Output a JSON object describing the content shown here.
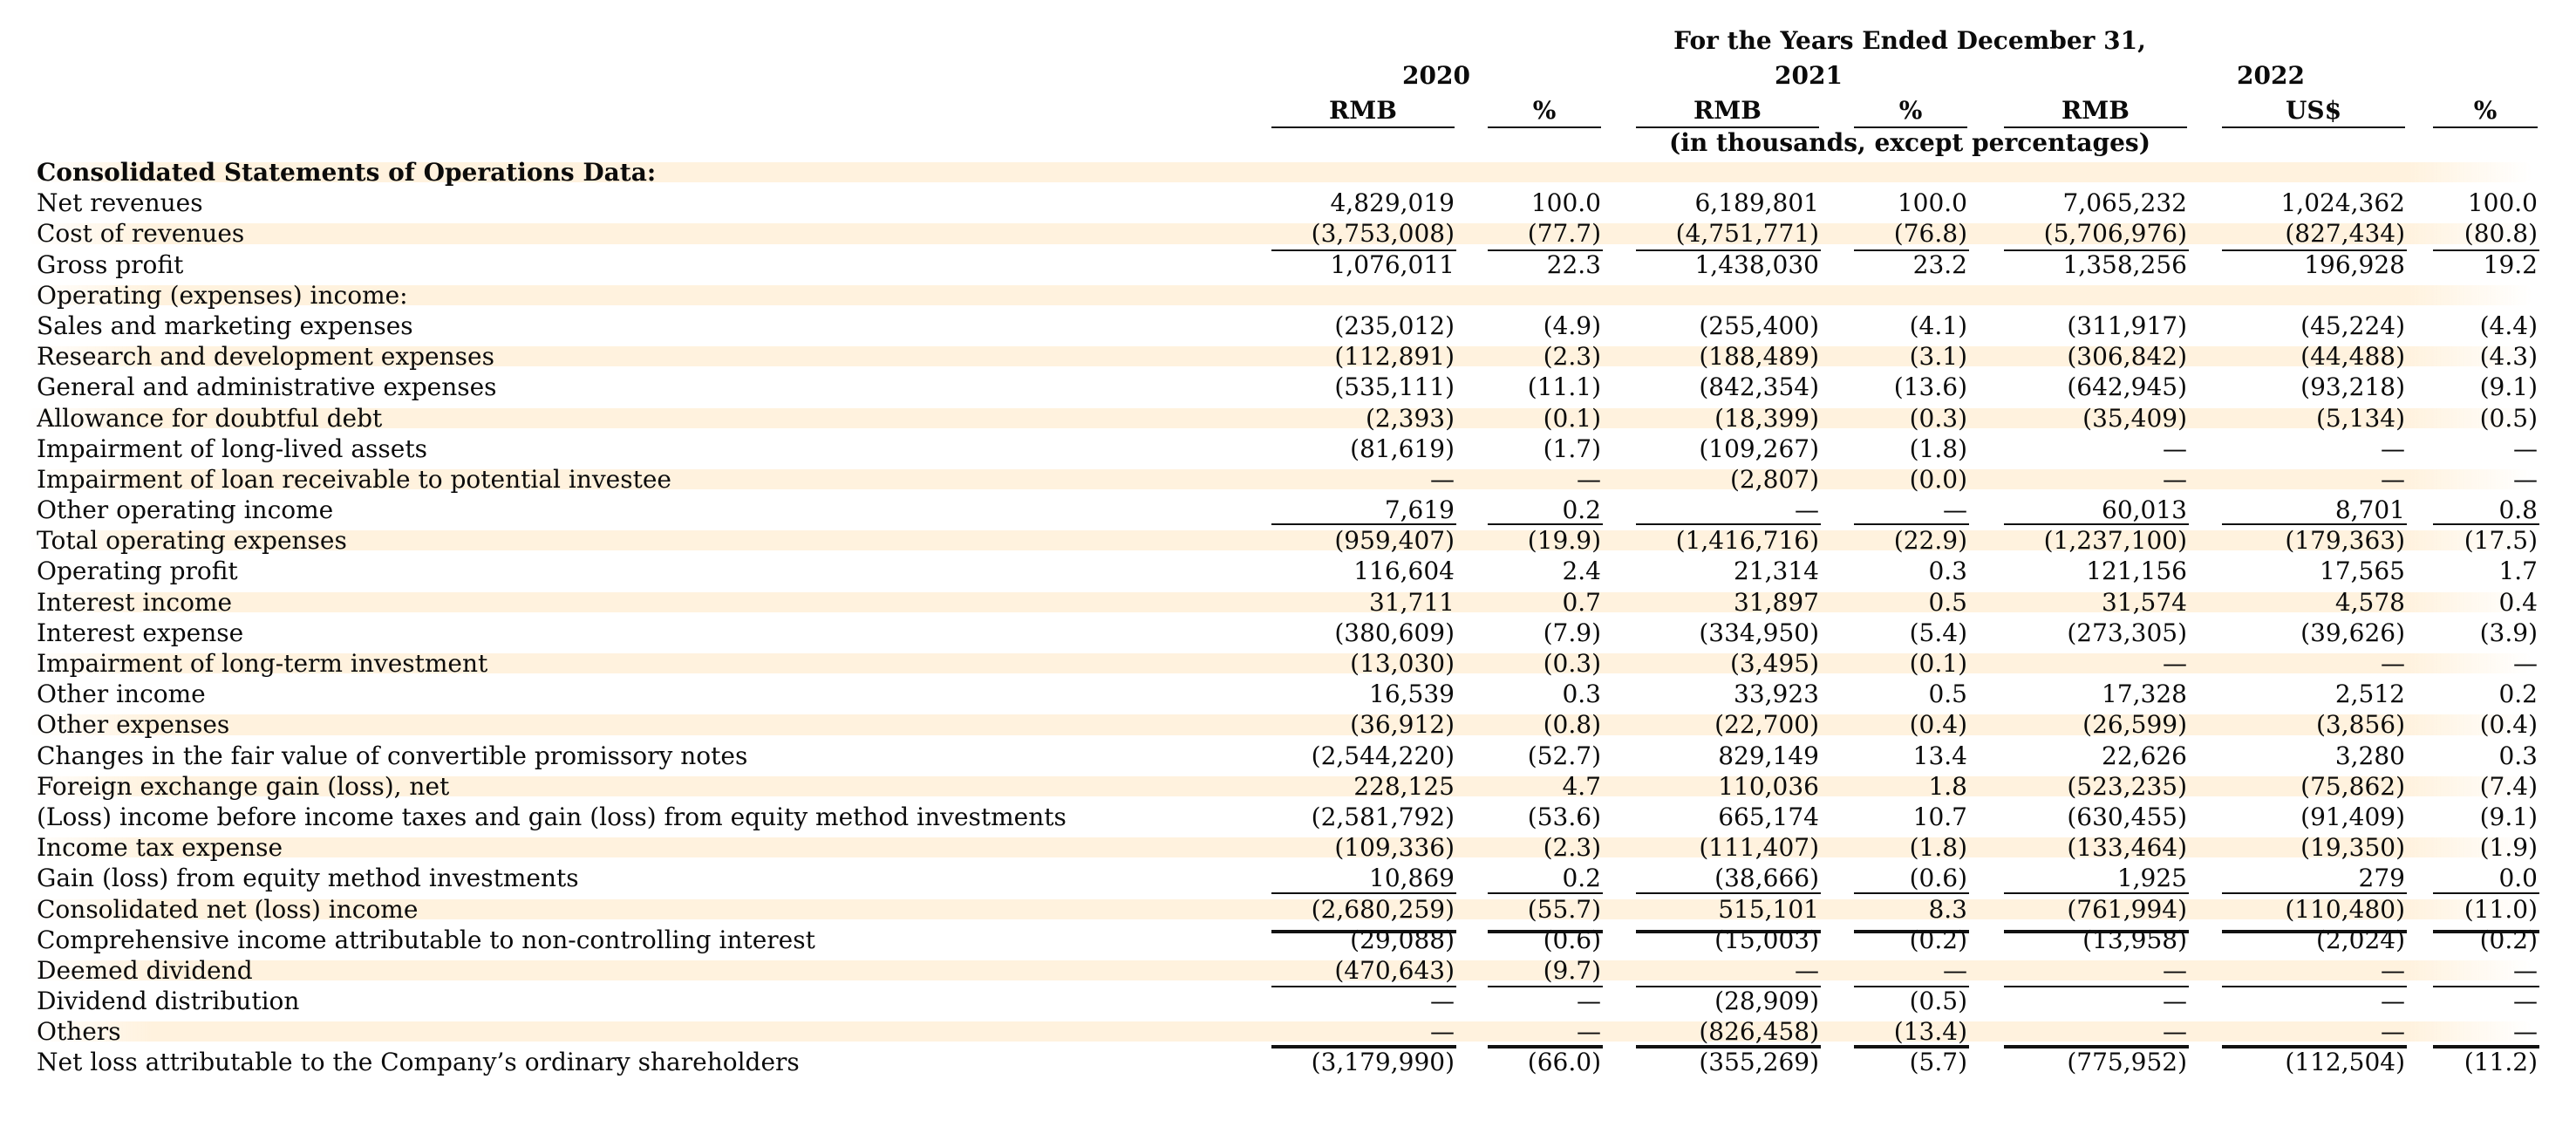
{
  "header": {
    "title": "For the Years Ended December 31,",
    "years": [
      "2020",
      "2021",
      "2022"
    ],
    "columns": [
      "RMB",
      "%",
      "RMB",
      "%",
      "RMB",
      "US$",
      "%"
    ],
    "subtitle": "(in thousands, except percentages)"
  },
  "rows": [
    {
      "label": "Consolidated Statements of Operations Data:",
      "bold": true,
      "values": [
        "",
        "",
        "",
        "",
        "",
        "",
        ""
      ]
    },
    {
      "label": "Net revenues",
      "values": [
        "4,829,019",
        "100.0",
        "6,189,801",
        "100.0",
        "7,065,232",
        "1,024,362",
        "100.0"
      ]
    },
    {
      "label": "Cost of revenues",
      "values": [
        "(3,753,008)",
        "(77.7)",
        "(4,751,771)",
        "(76.8)",
        "(5,706,976)",
        "(827,434)",
        "(80.8)"
      ]
    },
    {
      "label": "Gross profit",
      "values": [
        "1,076,011",
        "22.3",
        "1,438,030",
        "23.2",
        "1,358,256",
        "196,928",
        "19.2"
      ]
    },
    {
      "label": "Operating (expenses) income:",
      "values": [
        "",
        "",
        "",
        "",
        "",
        "",
        ""
      ]
    },
    {
      "label": "Sales and marketing expenses",
      "values": [
        "(235,012)",
        "(4.9)",
        "(255,400)",
        "(4.1)",
        "(311,917)",
        "(45,224)",
        "(4.4)"
      ]
    },
    {
      "label": "Research and development expenses",
      "values": [
        "(112,891)",
        "(2.3)",
        "(188,489)",
        "(3.1)",
        "(306,842)",
        "(44,488)",
        "(4.3)"
      ]
    },
    {
      "label": "General and administrative expenses",
      "values": [
        "(535,111)",
        "(11.1)",
        "(842,354)",
        "(13.6)",
        "(642,945)",
        "(93,218)",
        "(9.1)"
      ]
    },
    {
      "label": "Allowance for doubtful debt",
      "values": [
        "(2,393)",
        "(0.1)",
        "(18,399)",
        "(0.3)",
        "(35,409)",
        "(5,134)",
        "(0.5)"
      ]
    },
    {
      "label": "Impairment of long-lived assets",
      "values": [
        "(81,619)",
        "(1.7)",
        "(109,267)",
        "(1.8)",
        "—",
        "—",
        "—"
      ]
    },
    {
      "label": "Impairment of loan receivable to potential investee",
      "values": [
        "—",
        "—",
        "(2,807)",
        "(0.0)",
        "—",
        "—",
        "—"
      ]
    },
    {
      "label": "Other operating income",
      "values": [
        "7,619",
        "0.2",
        "—",
        "—",
        "60,013",
        "8,701",
        "0.8"
      ]
    },
    {
      "label": "Total operating expenses",
      "values": [
        "(959,407)",
        "(19.9)",
        "(1,416,716)",
        "(22.9)",
        "(1,237,100)",
        "(179,363)",
        "(17.5)"
      ]
    },
    {
      "label": "Operating profit",
      "values": [
        "116,604",
        "2.4",
        "21,314",
        "0.3",
        "121,156",
        "17,565",
        "1.7"
      ]
    },
    {
      "label": "Interest income",
      "values": [
        "31,711",
        "0.7",
        "31,897",
        "0.5",
        "31,574",
        "4,578",
        "0.4"
      ]
    },
    {
      "label": "Interest expense",
      "values": [
        "(380,609)",
        "(7.9)",
        "(334,950)",
        "(5.4)",
        "(273,305)",
        "(39,626)",
        "(3.9)"
      ]
    },
    {
      "label": "Impairment of long-term investment",
      "values": [
        "(13,030)",
        "(0.3)",
        "(3,495)",
        "(0.1)",
        "—",
        "—",
        "—"
      ]
    },
    {
      "label": "Other income",
      "values": [
        "16,539",
        "0.3",
        "33,923",
        "0.5",
        "17,328",
        "2,512",
        "0.2"
      ]
    },
    {
      "label": "Other expenses",
      "values": [
        "(36,912)",
        "(0.8)",
        "(22,700)",
        "(0.4)",
        "(26,599)",
        "(3,856)",
        "(0.4)"
      ]
    },
    {
      "label": "Changes in the fair value of convertible promissory notes",
      "values": [
        "(2,544,220)",
        "(52.7)",
        "829,149",
        "13.4",
        "22,626",
        "3,280",
        "0.3"
      ]
    },
    {
      "label": "Foreign exchange gain (loss), net",
      "values": [
        "228,125",
        "4.7",
        "110,036",
        "1.8",
        "(523,235)",
        "(75,862)",
        "(7.4)"
      ]
    },
    {
      "label": "(Loss) income before income taxes and gain (loss) from equity method investments",
      "values": [
        "(2,581,792)",
        "(53.6)",
        "665,174",
        "10.7",
        "(630,455)",
        "(91,409)",
        "(9.1)"
      ]
    },
    {
      "label": "Income tax expense",
      "values": [
        "(109,336)",
        "(2.3)",
        "(111,407)",
        "(1.8)",
        "(133,464)",
        "(19,350)",
        "(1.9)"
      ]
    },
    {
      "label": "Gain (loss) from equity method investments",
      "values": [
        "10,869",
        "0.2",
        "(38,666)",
        "(0.6)",
        "1,925",
        "279",
        "0.0"
      ]
    },
    {
      "label": "Consolidated net (loss) income",
      "values": [
        "(2,680,259)",
        "(55.7)",
        "515,101",
        "8.3",
        "(761,994)",
        "(110,480)",
        "(11.0)"
      ]
    },
    {
      "label": "Comprehensive income attributable to non-controlling interest",
      "values": [
        "(29,088)",
        "(0.6)",
        "(15,003)",
        "(0.2)",
        "(13,958)",
        "(2,024)",
        "(0.2)"
      ]
    },
    {
      "label": "Deemed dividend",
      "values": [
        "(470,643)",
        "(9.7)",
        "—",
        "—",
        "—",
        "—",
        "—"
      ]
    },
    {
      "label": "Dividend distribution",
      "values": [
        "—",
        "—",
        "(28,909)",
        "(0.5)",
        "—",
        "—",
        "—"
      ]
    },
    {
      "label": "Others",
      "values": [
        "—",
        "—",
        "(826,458)",
        "(13.4)",
        "—",
        "—",
        "—"
      ]
    },
    {
      "label": "Net loss attributable to the Company’s ordinary shareholders",
      "values": [
        "(3,179,990)",
        "(66.0)",
        "(355,269)",
        "(5.7)",
        "(775,952)",
        "(112,504)",
        "(11.2)"
      ]
    }
  ]
}
